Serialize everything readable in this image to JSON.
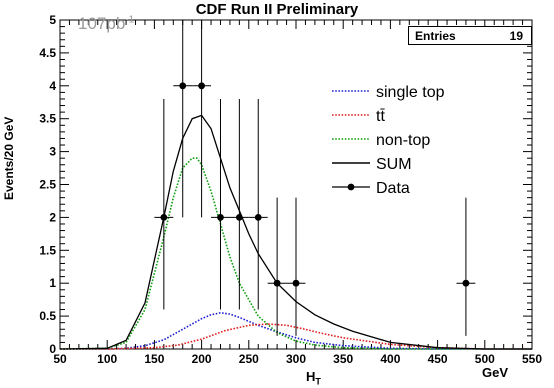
{
  "chart_data": {
    "type": "line",
    "title": "CDF Run II Preliminary",
    "xlabel": "H",
    "xlabel_sub": "T",
    "xunit": "GeV",
    "ylabel": "Events/20 GeV",
    "xlim": [
      50,
      550
    ],
    "ylim": [
      0,
      5
    ],
    "xticks": [
      "50",
      "100",
      "150",
      "200",
      "250",
      "300",
      "350",
      "400",
      "450",
      "500",
      "550"
    ],
    "yticks": [
      "0",
      "0.5",
      "1",
      "1.5",
      "2",
      "2.5",
      "3",
      "3.5",
      "4",
      "4.5",
      "5"
    ],
    "annotation": "107pb",
    "annotation_sup": "-1",
    "stats": {
      "label": "Entries",
      "value": "19"
    },
    "legend": [
      {
        "label": "single top",
        "style": "dotted",
        "color": "#2020d0"
      },
      {
        "label": "tt̄",
        "style": "dotted",
        "color": "#e02020"
      },
      {
        "label": "non-top",
        "style": "dotted",
        "color": "#10a010"
      },
      {
        "label": "SUM",
        "style": "solid",
        "color": "#000000"
      },
      {
        "label": "Data",
        "style": "marker",
        "color": "#000000"
      }
    ],
    "series": [
      {
        "name": "single top",
        "color": "#2020d0",
        "x": [
          50,
          100,
          120,
          140,
          160,
          180,
          200,
          210,
          220,
          230,
          240,
          260,
          280,
          300,
          320,
          350,
          400,
          450,
          500,
          550
        ],
        "y": [
          0,
          0,
          0.01,
          0.05,
          0.14,
          0.3,
          0.46,
          0.52,
          0.55,
          0.53,
          0.48,
          0.36,
          0.26,
          0.17,
          0.1,
          0.05,
          0.01,
          0,
          0,
          0
        ]
      },
      {
        "name": "tt̄",
        "color": "#e02020",
        "x": [
          50,
          100,
          150,
          175,
          200,
          225,
          250,
          270,
          290,
          310,
          330,
          350,
          400,
          450,
          500,
          550
        ],
        "y": [
          0,
          0,
          0.02,
          0.06,
          0.15,
          0.28,
          0.36,
          0.38,
          0.36,
          0.3,
          0.23,
          0.17,
          0.07,
          0.02,
          0,
          0
        ]
      },
      {
        "name": "non-top",
        "color": "#10a010",
        "x": [
          50,
          100,
          120,
          140,
          160,
          170,
          180,
          190,
          195,
          200,
          210,
          220,
          230,
          240,
          260,
          280,
          300,
          320,
          350,
          400,
          450,
          500,
          550
        ],
        "y": [
          0,
          0.01,
          0.1,
          0.6,
          1.7,
          2.3,
          2.75,
          2.9,
          2.9,
          2.8,
          2.4,
          1.9,
          1.4,
          1.0,
          0.5,
          0.25,
          0.12,
          0.06,
          0.02,
          0,
          0,
          0,
          0
        ]
      },
      {
        "name": "SUM",
        "color": "#000000",
        "x": [
          50,
          100,
          120,
          140,
          160,
          170,
          180,
          190,
          200,
          210,
          220,
          230,
          240,
          250,
          260,
          280,
          300,
          320,
          340,
          360,
          400,
          450,
          500,
          550
        ],
        "y": [
          0,
          0.01,
          0.13,
          0.7,
          2.0,
          2.7,
          3.2,
          3.5,
          3.55,
          3.35,
          2.9,
          2.45,
          2.1,
          1.75,
          1.45,
          1.0,
          0.72,
          0.52,
          0.38,
          0.27,
          0.1,
          0.02,
          0,
          0
        ]
      }
    ],
    "data_points": {
      "name": "Data",
      "x": [
        160,
        180,
        200,
        220,
        240,
        260,
        280,
        300,
        480
      ],
      "y": [
        2,
        4,
        4,
        2,
        2,
        2,
        1,
        1,
        1
      ],
      "err_up": [
        1.8,
        2.4,
        2.4,
        1.8,
        1.8,
        1.8,
        1.3,
        1.3,
        1.3
      ],
      "err_down": [
        1.4,
        2.0,
        2.0,
        1.4,
        1.4,
        1.4,
        0.8,
        0.8,
        0.8
      ],
      "xerr": 10
    }
  }
}
